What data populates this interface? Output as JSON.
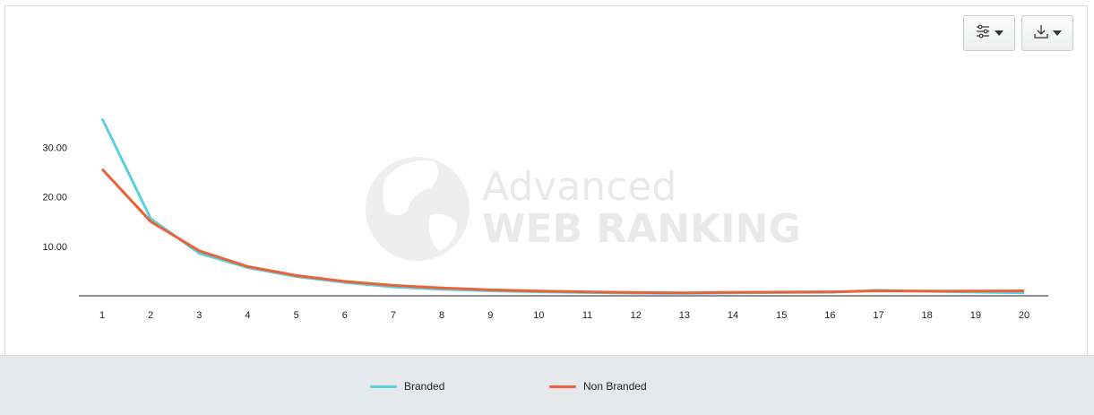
{
  "toolbar": {
    "settings_icon": "sliders-icon",
    "download_icon": "download-icon"
  },
  "watermark": {
    "line1": "Advanced",
    "line2": "WEB RANKING",
    "icon": "globe-icon"
  },
  "chart_data": {
    "type": "line",
    "x": [
      1,
      2,
      3,
      4,
      5,
      6,
      7,
      8,
      9,
      10,
      11,
      12,
      13,
      14,
      15,
      16,
      17,
      18,
      19,
      20
    ],
    "series": [
      {
        "name": "Branded",
        "color": "#5bcfe0",
        "values": [
          35.8,
          15.6,
          8.6,
          5.7,
          3.9,
          2.7,
          1.8,
          1.3,
          1.0,
          0.8,
          0.65,
          0.55,
          0.5,
          0.6,
          0.65,
          0.7,
          1.1,
          0.9,
          0.75,
          0.6
        ]
      },
      {
        "name": "Non Branded",
        "color": "#e8633a",
        "values": [
          25.6,
          15.0,
          9.1,
          5.9,
          4.1,
          2.9,
          2.1,
          1.6,
          1.2,
          0.95,
          0.8,
          0.65,
          0.6,
          0.7,
          0.75,
          0.8,
          1.0,
          0.95,
          0.95,
          1.0
        ]
      }
    ],
    "yticks": [
      "10.00",
      "20.00",
      "30.00"
    ],
    "ytick_values": [
      10,
      20,
      30
    ],
    "ylim": [
      0,
      40
    ],
    "grid": false,
    "legend_position": "bottom"
  },
  "legend": {
    "items": [
      {
        "label": "Branded",
        "color": "#5bcfe0"
      },
      {
        "label": "Non Branded",
        "color": "#e8633a"
      }
    ]
  }
}
